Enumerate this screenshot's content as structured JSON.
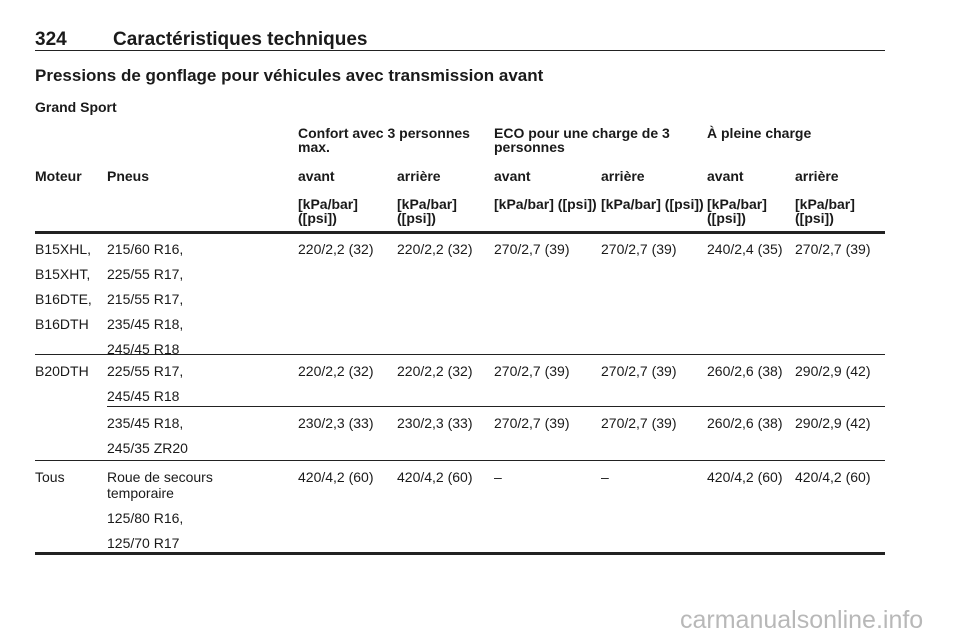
{
  "header": {
    "page_number": "324",
    "title": "Caractéristiques techniques"
  },
  "section_title": "Pressions de gonflage pour véhicules avec transmission avant",
  "subsection_title": "Grand Sport",
  "table": {
    "group_headers": [
      "Confort avec 3 personnes max.",
      "ECO pour une charge de 3 personnes",
      "À pleine charge"
    ],
    "columns": [
      "Moteur",
      "Pneus",
      "avant",
      "arrière",
      "avant",
      "arrière",
      "avant",
      "arrière"
    ],
    "units": [
      "[kPa/bar] ([psi])",
      "[kPa/bar] ([psi])",
      "[kPa/bar] ([psi])",
      "[kPa/bar] ([psi])",
      "[kPa/bar] ([psi])",
      "[kPa/bar] ([psi])"
    ],
    "rows": [
      {
        "engines": [
          "B15XHL,",
          "B15XHT,",
          "B16DTE,",
          "B16DTH"
        ],
        "tyres": [
          "215/60 R16,",
          "225/55 R17,",
          "215/55 R17,",
          "235/45 R18,",
          "245/45 R18"
        ],
        "values": [
          "220/2,2 (32)",
          "220/2,2 (32)",
          "270/2,7 (39)",
          "270/2,7 (39)",
          "240/2,4 (35)",
          "270/2,7 (39)"
        ]
      },
      {
        "engines": [
          "B20DTH"
        ],
        "tyres": [
          "225/55 R17,",
          "245/45 R18"
        ],
        "values": [
          "220/2,2 (32)",
          "220/2,2 (32)",
          "270/2,7 (39)",
          "270/2,7 (39)",
          "260/2,6 (38)",
          "290/2,9 (42)"
        ]
      },
      {
        "engines": [],
        "tyres": [
          "235/45 R18,",
          "245/35 ZR20"
        ],
        "values": [
          "230/2,3 (33)",
          "230/2,3 (33)",
          "270/2,7 (39)",
          "270/2,7 (39)",
          "260/2,6 (38)",
          "290/2,9 (42)"
        ]
      },
      {
        "engines": [
          "Tous"
        ],
        "tyres": [
          "Roue de secours temporaire",
          "125/80 R16,",
          "125/70 R17"
        ],
        "values": [
          "420/4,2 (60)",
          "420/4,2 (60)",
          "–",
          "–",
          "420/4,2 (60)",
          "420/4,2 (60)"
        ]
      }
    ]
  },
  "watermark": "carmanualsonline.info"
}
